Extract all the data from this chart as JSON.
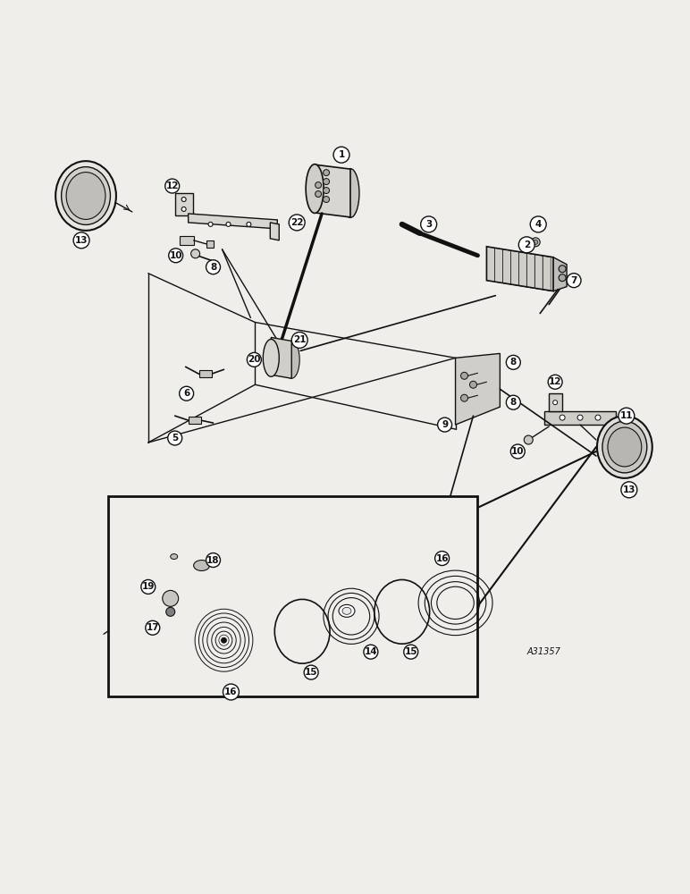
{
  "bg_color": "#f0eeea",
  "line_color": "#111111",
  "ref_code": "A31357",
  "fig_width": 7.72,
  "fig_height": 10.0,
  "dpi": 100
}
